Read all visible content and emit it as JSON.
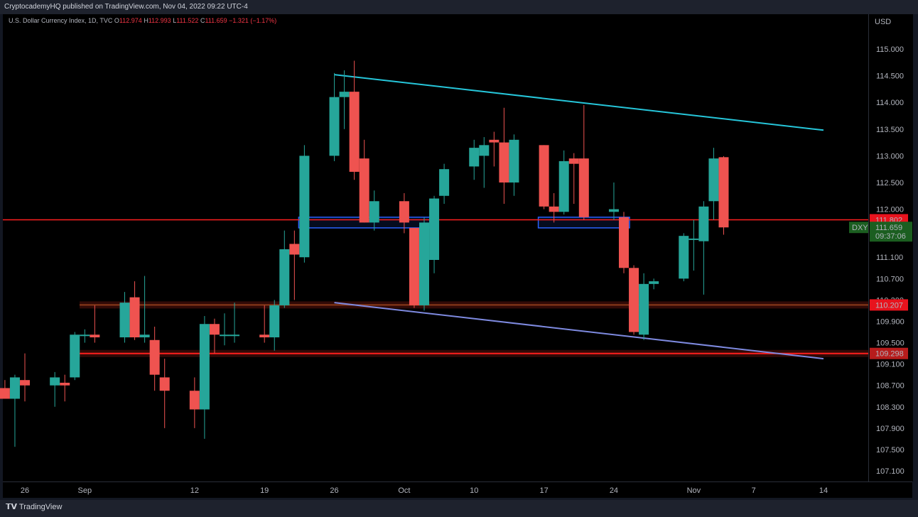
{
  "header": {
    "publisher": "CryptocademyHQ published on TradingView.com, Nov 04, 2022 09:22 UTC-4"
  },
  "legend": {
    "symbol": "U.S. Dollar Currency Index, 1D, TVC",
    "o_label": "O",
    "o_value": "112.974",
    "h_label": "H",
    "h_value": "112.993",
    "l_label": "L",
    "l_value": "111.522",
    "c_label": "C",
    "c_value": "111.659",
    "change": "−1.321 (−1.17%)"
  },
  "axis": {
    "currency": "USD",
    "price_ticks": [
      "115.000",
      "114.500",
      "114.000",
      "113.500",
      "113.000",
      "112.500",
      "112.000",
      "111.500",
      "111.100",
      "110.700",
      "110.300",
      "109.900",
      "109.500",
      "109.100",
      "108.700",
      "108.300",
      "107.900",
      "107.500",
      "107.100"
    ],
    "time_ticks": [
      "26",
      "Sep",
      "12",
      "19",
      "26",
      "Oct",
      "10",
      "17",
      "24",
      "Nov",
      "7",
      "14"
    ]
  },
  "price_labels": {
    "resistance": "111.802",
    "current": "111.659",
    "symbol": "DXY",
    "countdown": "09:37:06",
    "support_upper": "110.207",
    "support_lower": "109.298"
  },
  "footer": {
    "brand": "TradingView"
  },
  "colors": {
    "up": "#26a69a",
    "down": "#ef5350",
    "trend_upper": "#26c6da",
    "trend_lower": "#7e8ae0",
    "level_red": "#ff1f1f",
    "level_brown": "#8b3a1a",
    "box_blue": "#2962ff",
    "label_green": "#1b5e20"
  },
  "chart_data": {
    "type": "candlestick",
    "title": "U.S. Dollar Currency Index, 1D, TVC",
    "ylabel": "USD",
    "ylim": [
      106.9,
      115.9
    ],
    "xlim": [
      "2022-08-24",
      "2022-11-15"
    ],
    "candles": [
      {
        "date": "2022-08-24",
        "o": 108.65,
        "h": 108.8,
        "l": 108.45,
        "c": 108.45
      },
      {
        "date": "2022-08-25",
        "o": 108.45,
        "h": 108.9,
        "l": 107.55,
        "c": 108.85
      },
      {
        "date": "2022-08-26",
        "o": 108.8,
        "h": 109.3,
        "l": 108.4,
        "c": 108.7
      },
      {
        "date": "2022-08-29",
        "o": 108.7,
        "h": 108.95,
        "l": 108.3,
        "c": 108.85
      },
      {
        "date": "2022-08-30",
        "o": 108.75,
        "h": 108.9,
        "l": 108.4,
        "c": 108.7
      },
      {
        "date": "2022-08-31",
        "o": 108.85,
        "h": 109.7,
        "l": 108.8,
        "c": 109.65
      },
      {
        "date": "2022-09-01",
        "o": 109.65,
        "h": 109.75,
        "l": 109.5,
        "c": 109.65
      },
      {
        "date": "2022-09-02",
        "o": 109.65,
        "h": 110.2,
        "l": 109.5,
        "c": 109.6
      },
      {
        "date": "2022-09-05",
        "o": 109.6,
        "h": 110.45,
        "l": 109.5,
        "c": 110.25
      },
      {
        "date": "2022-09-06",
        "o": 110.35,
        "h": 110.65,
        "l": 109.55,
        "c": 109.6
      },
      {
        "date": "2022-09-07",
        "o": 109.6,
        "h": 110.75,
        "l": 109.5,
        "c": 109.65
      },
      {
        "date": "2022-09-08",
        "o": 109.55,
        "h": 109.8,
        "l": 108.6,
        "c": 108.9
      },
      {
        "date": "2022-09-09",
        "o": 108.85,
        "h": 109.2,
        "l": 107.9,
        "c": 108.6
      },
      {
        "date": "2022-09-12",
        "o": 108.6,
        "h": 108.85,
        "l": 107.9,
        "c": 108.25
      },
      {
        "date": "2022-09-13",
        "o": 108.25,
        "h": 110.0,
        "l": 107.7,
        "c": 109.85
      },
      {
        "date": "2022-09-14",
        "o": 109.85,
        "h": 109.95,
        "l": 109.3,
        "c": 109.65
      },
      {
        "date": "2022-09-15",
        "o": 109.65,
        "h": 110.05,
        "l": 109.45,
        "c": 109.65
      },
      {
        "date": "2022-09-16",
        "o": 109.65,
        "h": 110.25,
        "l": 109.5,
        "c": 109.65
      },
      {
        "date": "2022-09-19",
        "o": 109.65,
        "h": 110.2,
        "l": 109.5,
        "c": 109.6
      },
      {
        "date": "2022-09-20",
        "o": 109.6,
        "h": 110.3,
        "l": 109.35,
        "c": 110.2
      },
      {
        "date": "2022-09-21",
        "o": 110.2,
        "h": 111.6,
        "l": 110.15,
        "c": 111.25
      },
      {
        "date": "2022-09-22",
        "o": 111.35,
        "h": 111.6,
        "l": 110.3,
        "c": 111.15
      },
      {
        "date": "2022-09-23",
        "o": 111.1,
        "h": 113.2,
        "l": 111.0,
        "c": 113.0
      },
      {
        "date": "2022-09-26",
        "o": 113.0,
        "h": 114.55,
        "l": 112.9,
        "c": 114.1
      },
      {
        "date": "2022-09-27",
        "o": 114.1,
        "h": 114.6,
        "l": 113.5,
        "c": 114.2
      },
      {
        "date": "2022-09-28",
        "o": 114.2,
        "h": 114.78,
        "l": 112.55,
        "c": 112.7
      },
      {
        "date": "2022-09-29",
        "o": 112.95,
        "h": 113.3,
        "l": 111.75,
        "c": 111.75
      },
      {
        "date": "2022-09-30",
        "o": 111.75,
        "h": 112.35,
        "l": 111.6,
        "c": 112.15
      },
      {
        "date": "2022-10-03",
        "o": 112.15,
        "h": 112.3,
        "l": 111.55,
        "c": 111.75
      },
      {
        "date": "2022-10-04",
        "o": 111.65,
        "h": 111.65,
        "l": 110.15,
        "c": 110.2
      },
      {
        "date": "2022-10-05",
        "o": 110.2,
        "h": 111.85,
        "l": 110.1,
        "c": 111.75
      },
      {
        "date": "2022-10-06",
        "o": 111.05,
        "h": 112.25,
        "l": 110.8,
        "c": 112.2
      },
      {
        "date": "2022-10-07",
        "o": 112.25,
        "h": 112.85,
        "l": 112.1,
        "c": 112.75
      },
      {
        "date": "2022-10-10",
        "o": 112.8,
        "h": 113.3,
        "l": 112.55,
        "c": 113.15
      },
      {
        "date": "2022-10-11",
        "o": 113.0,
        "h": 113.35,
        "l": 112.4,
        "c": 113.2
      },
      {
        "date": "2022-10-12",
        "o": 113.3,
        "h": 113.45,
        "l": 112.8,
        "c": 113.25
      },
      {
        "date": "2022-10-13",
        "o": 113.25,
        "h": 113.9,
        "l": 112.1,
        "c": 112.5
      },
      {
        "date": "2022-10-14",
        "o": 112.5,
        "h": 113.4,
        "l": 112.25,
        "c": 113.3
      },
      {
        "date": "2022-10-17",
        "o": 113.2,
        "h": 113.2,
        "l": 112.0,
        "c": 112.05
      },
      {
        "date": "2022-10-18",
        "o": 112.05,
        "h": 112.3,
        "l": 111.75,
        "c": 111.95
      },
      {
        "date": "2022-10-19",
        "o": 111.95,
        "h": 113.1,
        "l": 111.9,
        "c": 112.9
      },
      {
        "date": "2022-10-20",
        "o": 112.95,
        "h": 113.05,
        "l": 112.1,
        "c": 112.85
      },
      {
        "date": "2022-10-21",
        "o": 112.95,
        "h": 113.95,
        "l": 111.8,
        "c": 111.85
      },
      {
        "date": "2022-10-24",
        "o": 111.95,
        "h": 112.5,
        "l": 111.8,
        "c": 112.0
      },
      {
        "date": "2022-10-25",
        "o": 111.85,
        "h": 111.95,
        "l": 110.8,
        "c": 110.9
      },
      {
        "date": "2022-10-26",
        "o": 110.9,
        "h": 110.95,
        "l": 109.65,
        "c": 109.7
      },
      {
        "date": "2022-10-27",
        "o": 109.65,
        "h": 110.8,
        "l": 109.55,
        "c": 110.6
      },
      {
        "date": "2022-10-28",
        "o": 110.6,
        "h": 110.7,
        "l": 110.5,
        "c": 110.65
      },
      {
        "date": "2022-10-31",
        "o": 110.7,
        "h": 111.55,
        "l": 110.65,
        "c": 111.5
      },
      {
        "date": "2022-11-01",
        "o": 111.45,
        "h": 111.8,
        "l": 110.85,
        "c": 111.45
      },
      {
        "date": "2022-11-02",
        "o": 111.4,
        "h": 112.15,
        "l": 110.4,
        "c": 112.05
      },
      {
        "date": "2022-11-03",
        "o": 112.15,
        "h": 113.15,
        "l": 111.8,
        "c": 112.95
      },
      {
        "date": "2022-11-04",
        "o": 112.974,
        "h": 112.993,
        "l": 111.522,
        "c": 111.659
      }
    ],
    "levels": [
      {
        "price": 111.802,
        "style": "resistance"
      },
      {
        "price": 110.207,
        "style": "support-upper"
      },
      {
        "price": 109.298,
        "style": "support-lower"
      }
    ],
    "trendlines": [
      {
        "name": "",
        "from": {
          "date": "2022-09-26",
          "price": 114.52
        },
        "to": {
          "date": "2022-11-14",
          "price": 113.48
        }
      },
      {
        "name": "",
        "from": {
          "date": "2022-09-26",
          "price": 110.25
        },
        "to": {
          "date": "2022-11-14",
          "price": 109.2
        }
      }
    ],
    "zones": [
      {
        "from": "2022-09-23",
        "to": "2022-10-05",
        "low": 111.65,
        "high": 111.85
      },
      {
        "from": "2022-10-17",
        "to": "2022-10-25",
        "low": 111.65,
        "high": 111.85
      }
    ],
    "grid": false
  }
}
